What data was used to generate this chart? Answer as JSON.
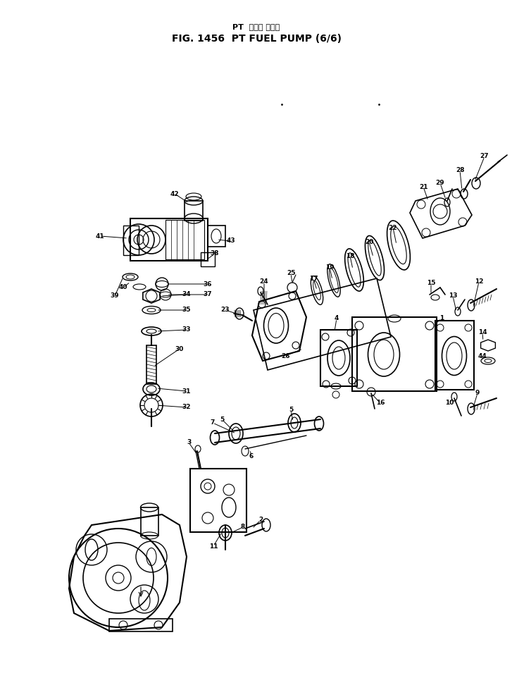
{
  "title_line1": "PT  フェル ポンプ",
  "title_line2": "FIG. 1456  PT FUEL PUMP (6/6)",
  "bg_color": "#ffffff",
  "fig_width": 7.27,
  "fig_height": 9.89,
  "dpi": 100
}
